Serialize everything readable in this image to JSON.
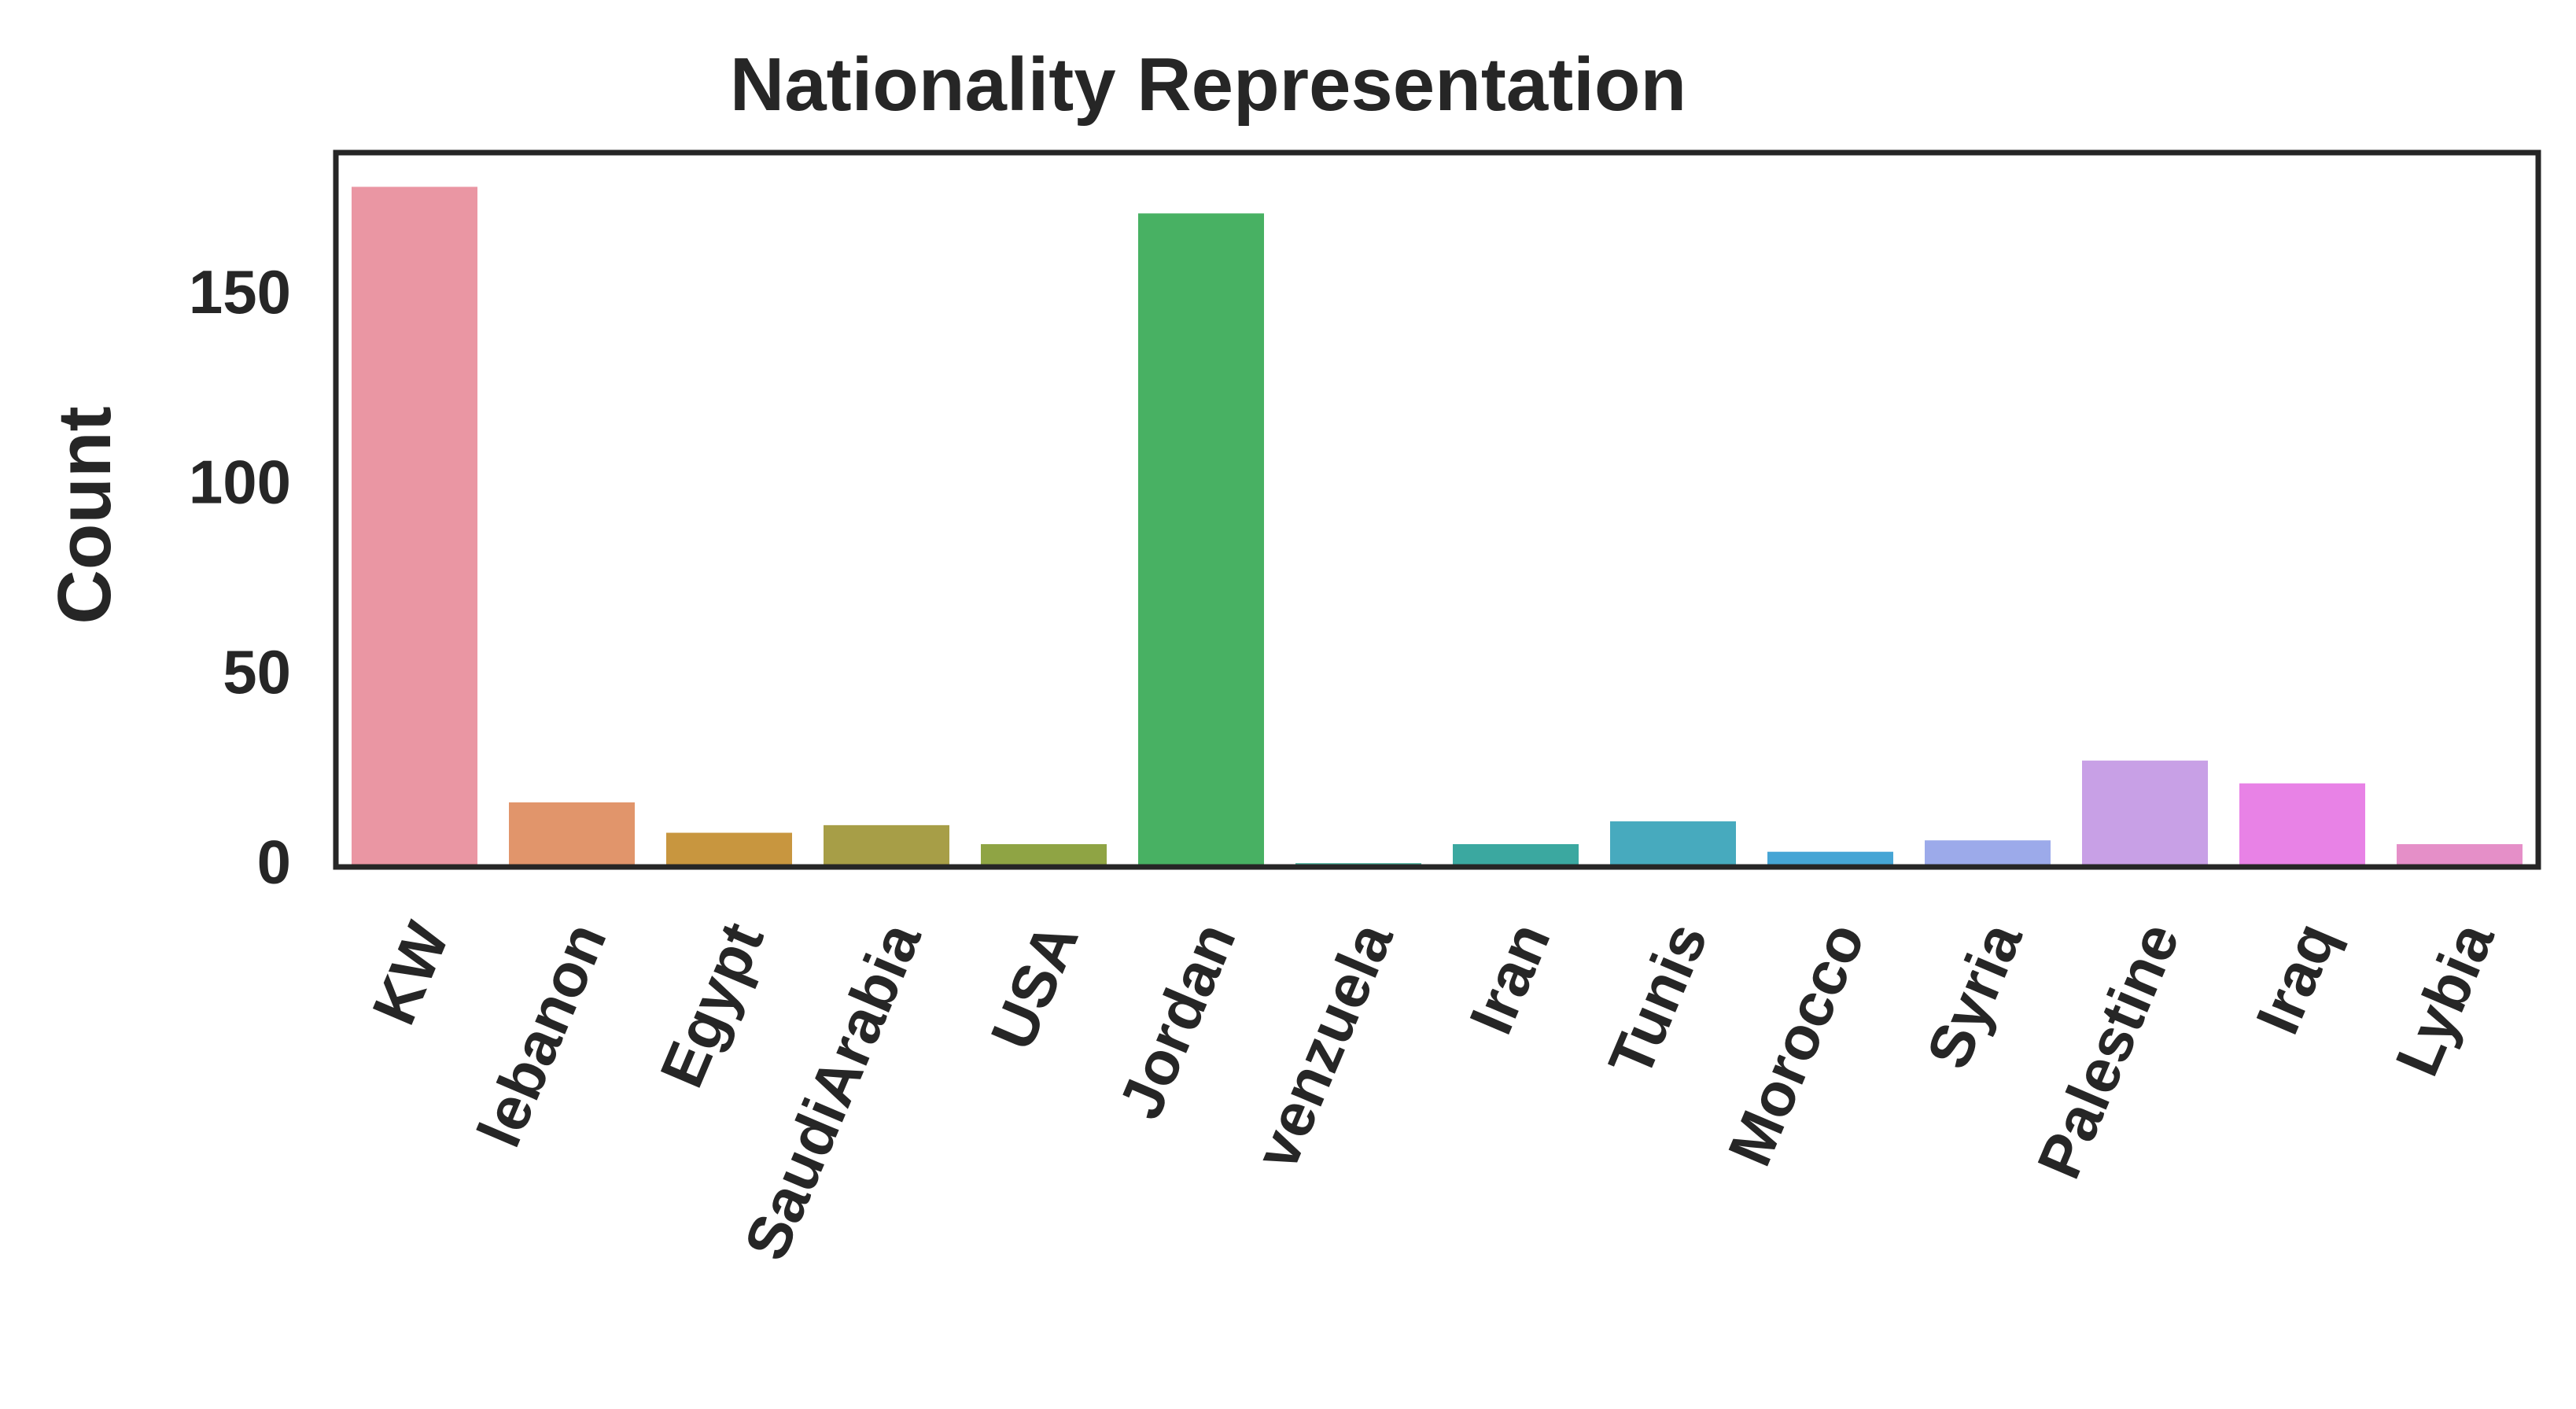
{
  "chart_data": {
    "type": "bar",
    "title": "Nationality Representation",
    "xlabel": "",
    "ylabel": "Count",
    "categories": [
      "KW",
      "lebanon",
      "Egypt",
      "SaudiArabia",
      "USA",
      "Jordan",
      "venzuela",
      "Iran",
      "Tunis",
      "Morocco",
      "Syria",
      "Palestine",
      "Iraq",
      "Lybia"
    ],
    "values": [
      179,
      17,
      9,
      11,
      6,
      172,
      1,
      6,
      12,
      4,
      7,
      28,
      22,
      6
    ],
    "colors": [
      "#ea96a3",
      "#e1956b",
      "#c8963f",
      "#a79e47",
      "#8fa444",
      "#48b163",
      "#4ab09c",
      "#3ba8a0",
      "#47aabe",
      "#46a5d5",
      "#9caaea",
      "#c8a0e6",
      "#e882e6",
      "#e58fc8"
    ],
    "yticks": [
      0,
      50,
      100,
      150
    ],
    "ylim": [
      0,
      188
    ],
    "grid": false,
    "legend": "none"
  }
}
